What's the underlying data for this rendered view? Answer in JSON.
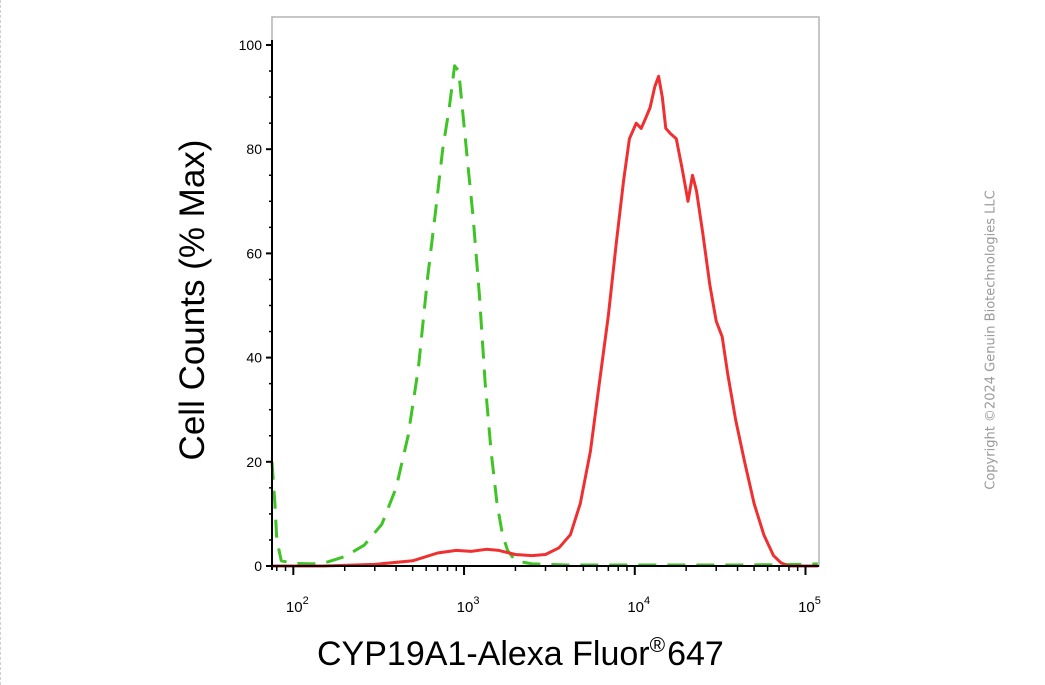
{
  "chart_data": {
    "type": "line",
    "xlabel": "CYP19A1-Alexa Fluor",
    "xlabel_super": "®",
    "xlabel_suffix": "647",
    "ylabel": "Cell Counts (% Max)",
    "x_scale": "log",
    "xlim": [
      75,
      120000
    ],
    "ylim": [
      0,
      103
    ],
    "y_ticks": [
      0,
      20,
      40,
      60,
      80,
      100
    ],
    "x_ticks": [
      {
        "value": 100,
        "base": "10",
        "exp": "2"
      },
      {
        "value": 1000,
        "base": "10",
        "exp": "3"
      },
      {
        "value": 10000,
        "base": "10",
        "exp": "4"
      },
      {
        "value": 100000,
        "base": "10",
        "exp": "5"
      }
    ],
    "grid": false,
    "series": [
      {
        "color": "#3ec424",
        "dash": "dashed",
        "points": [
          [
            75,
            20
          ],
          [
            78,
            12
          ],
          [
            80,
            5
          ],
          [
            85,
            1
          ],
          [
            100,
            0.5
          ],
          [
            130,
            0.4
          ],
          [
            160,
            0.8
          ],
          [
            200,
            1.8
          ],
          [
            260,
            4
          ],
          [
            330,
            8
          ],
          [
            400,
            15
          ],
          [
            470,
            25
          ],
          [
            540,
            38
          ],
          [
            610,
            55
          ],
          [
            680,
            68
          ],
          [
            750,
            80
          ],
          [
            820,
            88
          ],
          [
            880,
            96
          ],
          [
            930,
            95
          ],
          [
            990,
            86
          ],
          [
            1060,
            76
          ],
          [
            1130,
            67
          ],
          [
            1230,
            52
          ],
          [
            1330,
            35
          ],
          [
            1440,
            22
          ],
          [
            1560,
            12
          ],
          [
            1680,
            6
          ],
          [
            1800,
            3
          ],
          [
            2000,
            1
          ],
          [
            2500,
            0.4
          ],
          [
            4000,
            0.2
          ],
          [
            10000,
            0.2
          ],
          [
            40000,
            0.2
          ],
          [
            100000,
            0.3
          ],
          [
            118000,
            0.4
          ]
        ]
      },
      {
        "color": "#f03030",
        "dash": "solid",
        "points": [
          [
            75,
            0
          ],
          [
            150,
            0
          ],
          [
            300,
            0.3
          ],
          [
            500,
            1
          ],
          [
            700,
            2.5
          ],
          [
            900,
            3
          ],
          [
            1100,
            2.8
          ],
          [
            1350,
            3.2
          ],
          [
            1600,
            3
          ],
          [
            2000,
            2.2
          ],
          [
            2500,
            2
          ],
          [
            3000,
            2.2
          ],
          [
            3600,
            3.5
          ],
          [
            4200,
            6
          ],
          [
            4800,
            12
          ],
          [
            5500,
            22
          ],
          [
            6200,
            35
          ],
          [
            7000,
            48
          ],
          [
            7800,
            62
          ],
          [
            8600,
            74
          ],
          [
            9300,
            82
          ],
          [
            10200,
            85
          ],
          [
            10900,
            84
          ],
          [
            11600,
            86
          ],
          [
            12300,
            88
          ],
          [
            13100,
            92
          ],
          [
            13800,
            94
          ],
          [
            14500,
            90
          ],
          [
            15200,
            84
          ],
          [
            16200,
            83
          ],
          [
            17500,
            82
          ],
          [
            19000,
            76
          ],
          [
            20500,
            70
          ],
          [
            21800,
            75
          ],
          [
            23000,
            72
          ],
          [
            25000,
            64
          ],
          [
            27500,
            54
          ],
          [
            30000,
            47
          ],
          [
            32500,
            44
          ],
          [
            35000,
            37
          ],
          [
            39000,
            28
          ],
          [
            44000,
            20
          ],
          [
            50000,
            12
          ],
          [
            57000,
            6
          ],
          [
            65000,
            2
          ],
          [
            72000,
            0.6
          ],
          [
            80000,
            0
          ],
          [
            118000,
            0
          ]
        ]
      }
    ]
  },
  "watermark": "Copyright ©2024 Genuin Biotechnologies LLC"
}
